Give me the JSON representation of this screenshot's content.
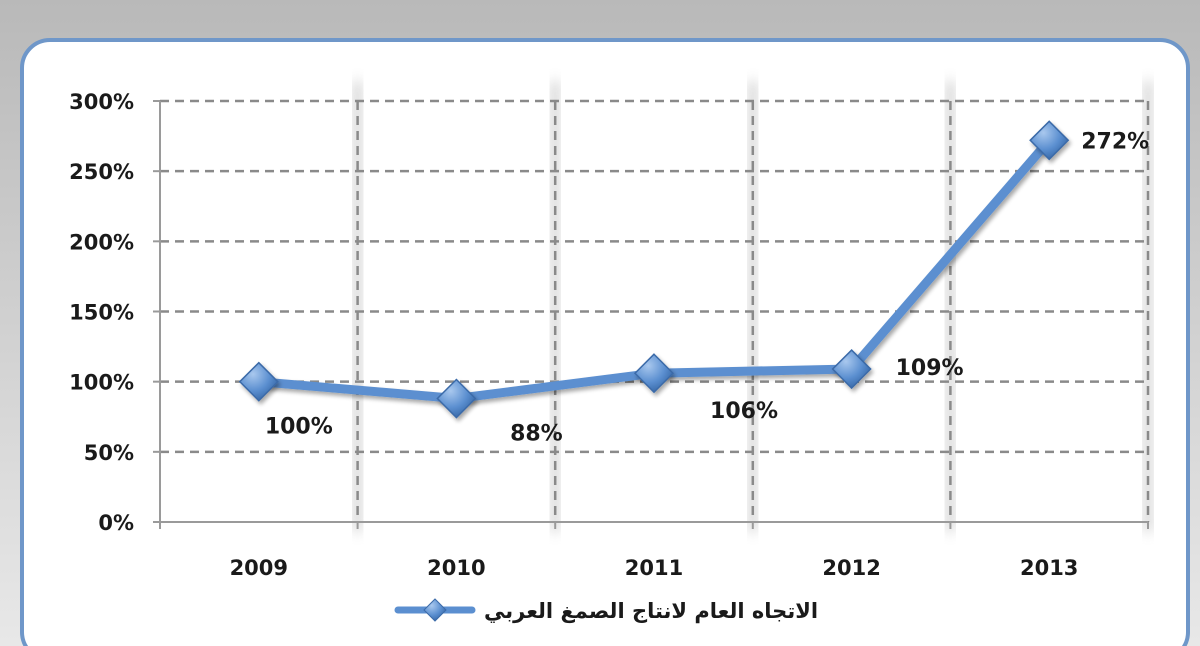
{
  "chart_data": {
    "type": "line",
    "categories": [
      "2009",
      "2010",
      "2011",
      "2012",
      "2013"
    ],
    "series": [
      {
        "name": "الاتجاه العام لانتاج الصمغ العربي",
        "values": [
          100,
          88,
          106,
          109,
          272
        ],
        "data_labels": [
          "100%",
          "88%",
          "106%",
          "109%",
          "272%"
        ]
      }
    ],
    "y_ticks": [
      "0%",
      "50%",
      "100%",
      "150%",
      "200%",
      "250%",
      "300%"
    ],
    "ylim": [
      0,
      300
    ],
    "grid": true,
    "legend_position": "bottom",
    "colors": {
      "line": "#5b8fd0",
      "marker": "#4f84c4",
      "frame": "#6f97c9",
      "grid": "#8a8a8a",
      "text": "#1a1a1a"
    }
  }
}
